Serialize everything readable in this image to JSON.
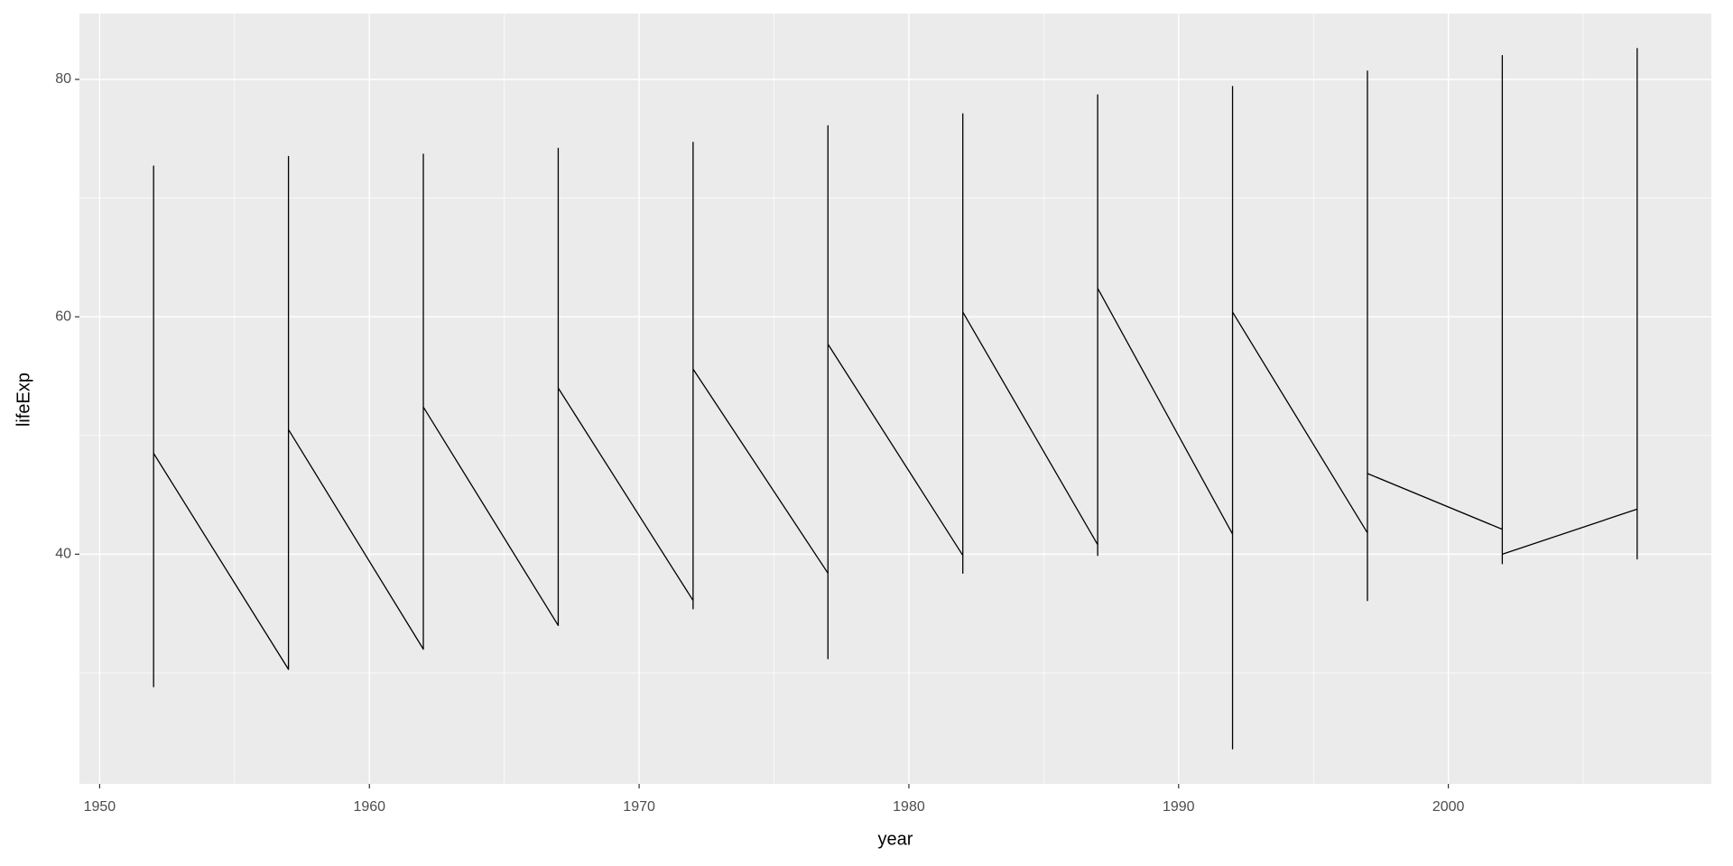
{
  "chart_data": {
    "type": "line",
    "x_label": "year",
    "y_label": "lifeExp",
    "x": [
      1952,
      1952,
      1952,
      1952,
      1957,
      1957,
      1957,
      1957,
      1962,
      1962,
      1962,
      1962,
      1967,
      1967,
      1967,
      1967,
      1972,
      1972,
      1972,
      1972,
      1977,
      1977,
      1977,
      1977,
      1982,
      1982,
      1982,
      1982,
      1987,
      1987,
      1987,
      1987,
      1992,
      1992,
      1992,
      1992,
      1997,
      1997,
      1997,
      1997,
      2002,
      2002,
      2002,
      2002,
      2007,
      2007,
      2007,
      2007
    ],
    "series": [
      {
        "color": "#000000",
        "values": [
          28.8,
          28.8,
          72.7,
          48.5,
          30.3,
          30.3,
          73.5,
          50.5,
          32.0,
          32.0,
          73.7,
          52.4,
          34.0,
          34.0,
          74.2,
          54.0,
          36.1,
          35.4,
          74.7,
          55.6,
          38.4,
          31.2,
          76.1,
          57.7,
          39.9,
          38.4,
          77.1,
          60.4,
          40.8,
          39.9,
          78.7,
          62.4,
          41.7,
          23.6,
          79.4,
          60.4,
          41.8,
          36.1,
          80.7,
          46.8,
          42.1,
          39.2,
          82.0,
          40.0,
          43.8,
          39.6,
          82.6,
          43.5
        ]
      }
    ],
    "xlim": [
      1949.25,
      2009.75
    ],
    "ylim": [
      20.65,
      85.55
    ],
    "xticks": [
      1950,
      1960,
      1970,
      1980,
      1990,
      2000
    ],
    "yticks": [
      40,
      60,
      80
    ],
    "grid": true
  }
}
